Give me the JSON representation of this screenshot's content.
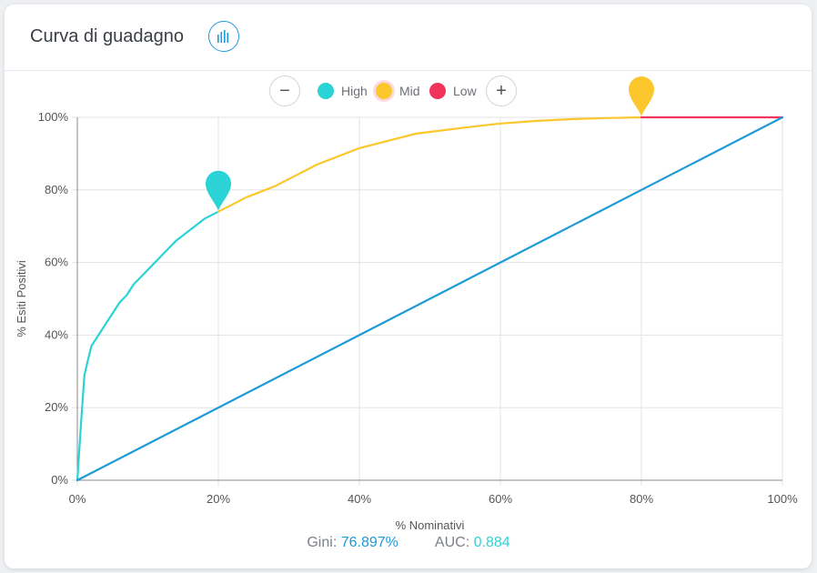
{
  "header": {
    "title": "Curva di guadagno",
    "chart_icon": "bar-chart-icon"
  },
  "legend": {
    "zoom_out_icon": "minus-icon",
    "zoom_in_icon": "plus-icon",
    "items": [
      {
        "label": "High",
        "color": "#2bd3d6"
      },
      {
        "label": "Mid",
        "color": "#fcc72c"
      },
      {
        "label": "Low",
        "color": "#f2335b"
      }
    ]
  },
  "metrics": {
    "gini_label": "Gini:",
    "gini_value": "76.897%",
    "auc_label": "AUC:",
    "auc_value": "0.884"
  },
  "colors": {
    "high": "#2bd3d6",
    "mid": "#fcc72c",
    "low": "#f2335b",
    "baseline": "#1e9ad6",
    "grid": "#e3e3e3"
  },
  "chart_data": {
    "type": "line",
    "title": "",
    "xlabel": "% Nominativi",
    "ylabel": "% Esiti Positivi",
    "xlim": [
      0,
      100
    ],
    "ylim": [
      0,
      100
    ],
    "grid": true,
    "legend_position": "top-center",
    "x_ticks": [
      "0%",
      "20%",
      "40%",
      "60%",
      "80%",
      "100%"
    ],
    "y_ticks": [
      "0%",
      "20%",
      "40%",
      "60%",
      "80%",
      "100%"
    ],
    "series": [
      {
        "name": "High",
        "x": [
          0,
          0.5,
          1,
          1.5,
          2,
          3,
          4,
          5,
          6,
          7,
          8,
          9,
          10,
          12,
          14,
          16,
          18,
          20
        ],
        "y": [
          0,
          15,
          29,
          33,
          37,
          40,
          43,
          46,
          49,
          51,
          54,
          56,
          58,
          62,
          66,
          69,
          72,
          74
        ]
      },
      {
        "name": "Mid",
        "x": [
          20,
          22,
          24,
          26,
          28,
          30,
          32,
          34,
          36,
          38,
          40,
          42,
          44,
          46,
          48,
          50,
          55,
          60,
          65,
          70,
          75,
          80
        ],
        "y": [
          74,
          76,
          78,
          79.5,
          81,
          83,
          85,
          87,
          88.5,
          90,
          91.5,
          92.5,
          93.5,
          94.5,
          95.5,
          96,
          97.2,
          98.3,
          99,
          99.5,
          99.8,
          100
        ]
      },
      {
        "name": "Low",
        "x": [
          80,
          100
        ],
        "y": [
          100,
          100
        ]
      },
      {
        "name": "",
        "x": [
          0,
          100
        ],
        "y": [
          0,
          100
        ]
      }
    ],
    "markers": [
      {
        "series": "High",
        "x": 20,
        "y": 74
      },
      {
        "series": "Mid",
        "x": 80,
        "y": 100
      }
    ]
  }
}
